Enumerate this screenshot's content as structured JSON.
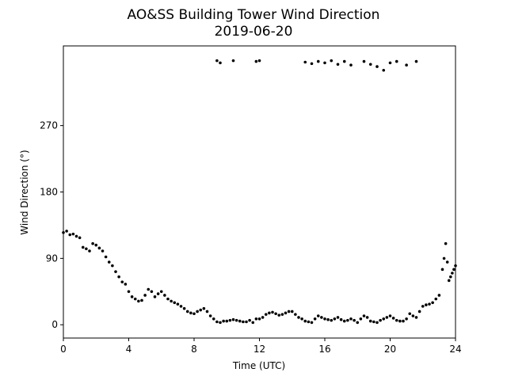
{
  "chart_data": {
    "type": "scatter",
    "title": "AO&SS Building Tower Wind Direction",
    "subtitle": "2019-06-20",
    "x_label": "Time (UTC)",
    "y_label": "Wind Direction (°)",
    "xlim": [
      0,
      24
    ],
    "ylim": [
      -18,
      378
    ],
    "xticks": [
      0,
      4,
      8,
      12,
      16,
      20,
      24
    ],
    "yticks": [
      0,
      90,
      180,
      270
    ],
    "color": "#000000",
    "x": [
      0,
      0.2,
      0.4,
      0.6,
      0.8,
      1.0,
      1.2,
      1.4,
      1.6,
      1.8,
      2.0,
      2.2,
      2.4,
      2.6,
      2.8,
      3.0,
      3.2,
      3.4,
      3.6,
      3.8,
      4.0,
      4.2,
      4.4,
      4.6,
      4.8,
      5.0,
      5.2,
      5.4,
      5.6,
      5.8,
      6.0,
      6.2,
      6.4,
      6.6,
      6.8,
      7.0,
      7.2,
      7.4,
      7.6,
      7.8,
      8.0,
      8.2,
      8.4,
      8.6,
      8.8,
      9.0,
      9.2,
      9.4,
      9.4,
      9.6,
      9.6,
      9.8,
      10.0,
      10.2,
      10.4,
      10.4,
      10.6,
      10.8,
      11.0,
      11.2,
      11.4,
      11.6,
      11.8,
      11.8,
      12.0,
      12.0,
      12.2,
      12.4,
      12.6,
      12.8,
      13.0,
      13.2,
      13.4,
      13.6,
      13.8,
      14.0,
      14.2,
      14.4,
      14.6,
      14.8,
      14.8,
      15.0,
      15.2,
      15.2,
      15.4,
      15.6,
      15.6,
      15.8,
      16.0,
      16.0,
      16.2,
      16.4,
      16.4,
      16.6,
      16.8,
      16.8,
      17.0,
      17.2,
      17.2,
      17.4,
      17.6,
      17.6,
      17.8,
      18.0,
      18.2,
      18.4,
      18.4,
      18.6,
      18.8,
      18.8,
      19.0,
      19.2,
      19.2,
      19.4,
      19.6,
      19.6,
      19.8,
      20.0,
      20.0,
      20.2,
      20.4,
      20.4,
      20.6,
      20.8,
      21.0,
      21.0,
      21.2,
      21.4,
      21.6,
      21.6,
      21.8,
      22.0,
      22.2,
      22.4,
      22.6,
      22.8,
      23.0,
      23.2,
      23.3,
      23.4,
      23.5,
      23.6,
      23.7,
      23.8,
      23.9,
      24.0
    ],
    "values": [
      125,
      127,
      122,
      123,
      120,
      118,
      105,
      103,
      100,
      110,
      108,
      104,
      100,
      92,
      85,
      80,
      72,
      65,
      58,
      55,
      45,
      38,
      35,
      32,
      33,
      40,
      48,
      45,
      38,
      42,
      45,
      40,
      35,
      32,
      30,
      28,
      25,
      22,
      18,
      16,
      15,
      18,
      20,
      22,
      18,
      12,
      8,
      358,
      4,
      355,
      3,
      5,
      5,
      6,
      358,
      7,
      6,
      5,
      4,
      4,
      6,
      3,
      357,
      8,
      358,
      8,
      10,
      14,
      16,
      17,
      15,
      13,
      14,
      16,
      18,
      18,
      14,
      10,
      8,
      356,
      5,
      4,
      354,
      3,
      8,
      357,
      12,
      10,
      355,
      8,
      7,
      358,
      6,
      8,
      353,
      10,
      7,
      357,
      5,
      6,
      352,
      8,
      6,
      3,
      8,
      357,
      12,
      10,
      353,
      5,
      4,
      350,
      3,
      6,
      345,
      8,
      10,
      355,
      12,
      9,
      357,
      6,
      5,
      5,
      352,
      8,
      15,
      12,
      357,
      10,
      18,
      25,
      27,
      28,
      30,
      35,
      40,
      75,
      90,
      110,
      85,
      60,
      65,
      70,
      75,
      80
    ]
  }
}
